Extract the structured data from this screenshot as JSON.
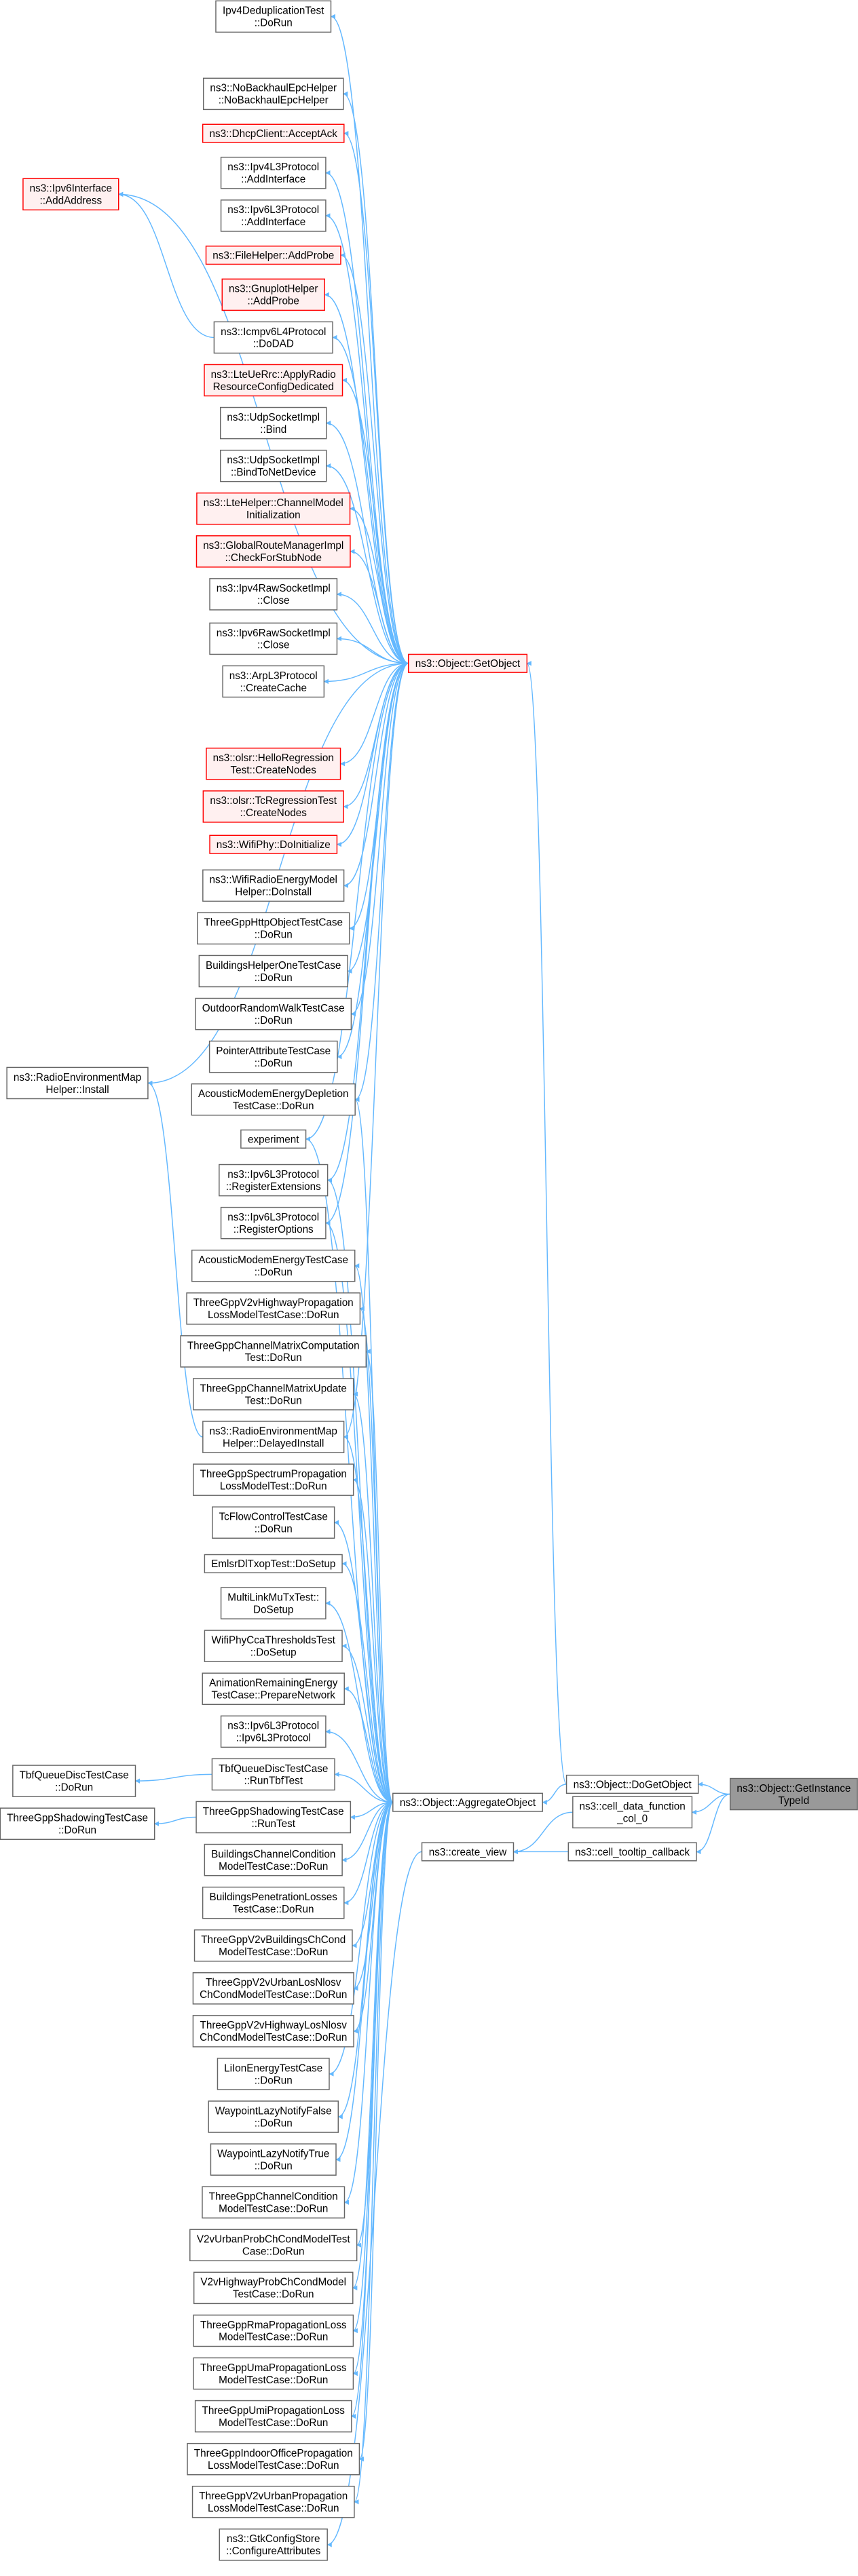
{
  "nodes": [
    {
      "lines": [
        "Ipv4DeduplicationTest",
        "::DoRun"
      ]
    },
    {
      "lines": [
        "ns3::NoBackhaulEpcHelper",
        "::NoBackhaulEpcHelper"
      ]
    },
    {
      "lines": [
        "ns3::DhcpClient::AcceptAck"
      ]
    },
    {
      "lines": [
        "ns3::Ipv4L3Protocol",
        "::AddInterface"
      ]
    },
    {
      "lines": [
        "ns3::Ipv6L3Protocol",
        "::AddInterface"
      ]
    },
    {
      "lines": [
        "ns3::FileHelper::AddProbe"
      ]
    },
    {
      "lines": [
        "ns3::GnuplotHelper",
        "::AddProbe"
      ]
    },
    {
      "lines": [
        "ns3::Icmpv6L4Protocol",
        "::DoDAD"
      ]
    },
    {
      "lines": [
        "ns3::LteUeRrc::ApplyRadio",
        "ResourceConfigDedicated"
      ]
    },
    {
      "lines": [
        "ns3::UdpSocketImpl",
        "::Bind"
      ]
    },
    {
      "lines": [
        "ns3::UdpSocketImpl",
        "::BindToNetDevice"
      ]
    },
    {
      "lines": [
        "ns3::LteHelper::ChannelModel",
        "Initialization"
      ]
    },
    {
      "lines": [
        "ns3::GlobalRouteManagerImpl",
        "::CheckForStubNode"
      ]
    },
    {
      "lines": [
        "ns3::Ipv4RawSocketImpl",
        "::Close"
      ]
    },
    {
      "lines": [
        "ns3::Ipv6RawSocketImpl",
        "::Close"
      ]
    },
    {
      "lines": [
        "ns3::ArpL3Protocol",
        "::CreateCache"
      ]
    },
    {
      "lines": [
        "ns3::olsr::HelloRegression",
        "Test::CreateNodes"
      ]
    },
    {
      "lines": [
        "ns3::olsr::TcRegressionTest",
        "::CreateNodes"
      ]
    },
    {
      "lines": [
        "ns3::WifiPhy::DoInitialize"
      ]
    },
    {
      "lines": [
        "ns3::WifiRadioEnergyModel",
        "Helper::DoInstall"
      ]
    },
    {
      "lines": [
        "ThreeGppHttpObjectTestCase",
        "::DoRun"
      ]
    },
    {
      "lines": [
        "BuildingsHelperOneTestCase",
        "::DoRun"
      ]
    },
    {
      "lines": [
        "OutdoorRandomWalkTestCase",
        "::DoRun"
      ]
    },
    {
      "lines": [
        "PointerAttributeTestCase",
        "::DoRun"
      ]
    },
    {
      "lines": [
        "AcousticModemEnergyDepletion",
        "TestCase::DoRun"
      ]
    },
    {
      "lines": [
        "experiment"
      ]
    },
    {
      "lines": [
        "ns3::Ipv6L3Protocol",
        "::RegisterExtensions"
      ]
    },
    {
      "lines": [
        "ns3::Ipv6L3Protocol",
        "::RegisterOptions"
      ]
    },
    {
      "lines": [
        "AcousticModemEnergyTestCase",
        "::DoRun"
      ]
    },
    {
      "lines": [
        "ThreeGppV2vHighwayPropagation",
        "LossModelTestCase::DoRun"
      ]
    },
    {
      "lines": [
        "ThreeGppChannelMatrixComputation",
        "Test::DoRun"
      ]
    },
    {
      "lines": [
        "ThreeGppChannelMatrixUpdate",
        "Test::DoRun"
      ]
    },
    {
      "lines": [
        "ns3::RadioEnvironmentMap",
        "Helper::DelayedInstall"
      ]
    },
    {
      "lines": [
        "ThreeGppSpectrumPropagation",
        "LossModelTest::DoRun"
      ]
    },
    {
      "lines": [
        "TcFlowControlTestCase",
        "::DoRun"
      ]
    },
    {
      "lines": [
        "EmlsrDlTxopTest::DoSetup"
      ]
    },
    {
      "lines": [
        "MultiLinkMuTxTest::",
        "DoSetup"
      ]
    },
    {
      "lines": [
        "WifiPhyCcaThresholdsTest",
        "::DoSetup"
      ]
    },
    {
      "lines": [
        "AnimationRemainingEnergy",
        "TestCase::PrepareNetwork"
      ]
    },
    {
      "lines": [
        "ns3::Ipv6L3Protocol",
        "::Ipv6L3Protocol"
      ]
    },
    {
      "lines": [
        "TbfQueueDiscTestCase",
        "::RunTbfTest"
      ]
    },
    {
      "lines": [
        "ThreeGppShadowingTestCase",
        "::RunTest"
      ]
    },
    {
      "lines": [
        "BuildingsChannelCondition",
        "ModelTestCase::DoRun"
      ]
    },
    {
      "lines": [
        "BuildingsPenetrationLosses",
        "TestCase::DoRun"
      ]
    },
    {
      "lines": [
        "ThreeGppV2vBuildingsChCond",
        "ModelTestCase::DoRun"
      ]
    },
    {
      "lines": [
        "ThreeGppV2vUrbanLosNlosv",
        "ChCondModelTestCase::DoRun"
      ]
    },
    {
      "lines": [
        "ThreeGppV2vHighwayLosNlosv",
        "ChCondModelTestCase::DoRun"
      ]
    },
    {
      "lines": [
        "LiIonEnergyTestCase",
        "::DoRun"
      ]
    },
    {
      "lines": [
        "WaypointLazyNotifyFalse",
        "::DoRun"
      ]
    },
    {
      "lines": [
        "WaypointLazyNotifyTrue",
        "::DoRun"
      ]
    },
    {
      "lines": [
        "ThreeGppChannelCondition",
        "ModelTestCase::DoRun"
      ]
    },
    {
      "lines": [
        "V2vUrbanProbChCondModelTest",
        "Case::DoRun"
      ]
    },
    {
      "lines": [
        "V2vHighwayProbChCondModel",
        "TestCase::DoRun"
      ]
    },
    {
      "lines": [
        "ThreeGppRmaPropagationLoss",
        "ModelTestCase::DoRun"
      ]
    },
    {
      "lines": [
        "ThreeGppUmaPropagationLoss",
        "ModelTestCase::DoRun"
      ]
    },
    {
      "lines": [
        "ThreeGppUmiPropagationLoss",
        "ModelTestCase::DoRun"
      ]
    },
    {
      "lines": [
        "ThreeGppIndoorOfficePropagation",
        "LossModelTestCase::DoRun"
      ]
    },
    {
      "lines": [
        "ThreeGppV2vUrbanPropagation",
        "LossModelTestCase::DoRun"
      ]
    },
    {
      "lines": [
        "ns3::GtkConfigStore",
        "::ConfigureAttributes"
      ]
    },
    {
      "lines": [
        "ns3::Ipv6Interface",
        "::AddAddress"
      ]
    },
    {
      "lines": [
        "ns3::RadioEnvironmentMap",
        "Helper::Install"
      ]
    },
    {
      "lines": [
        "TbfQueueDiscTestCase",
        "::DoRun"
      ]
    },
    {
      "lines": [
        "ThreeGppShadowingTestCase",
        "::DoRun"
      ]
    },
    {
      "lines": [
        "ns3::Object::GetObject"
      ]
    },
    {
      "lines": [
        "ns3::Object::AggregateObject"
      ]
    },
    {
      "lines": [
        "ns3::create_view"
      ]
    },
    {
      "lines": [
        "ns3::Object::DoGetObject"
      ]
    },
    {
      "lines": [
        "ns3::cell_data_function",
        "_col_0"
      ]
    },
    {
      "lines": [
        "ns3::cell_tooltip_callback"
      ]
    },
    {
      "lines": [
        "ns3::Object::GetInstance",
        "TypeId"
      ]
    }
  ]
}
